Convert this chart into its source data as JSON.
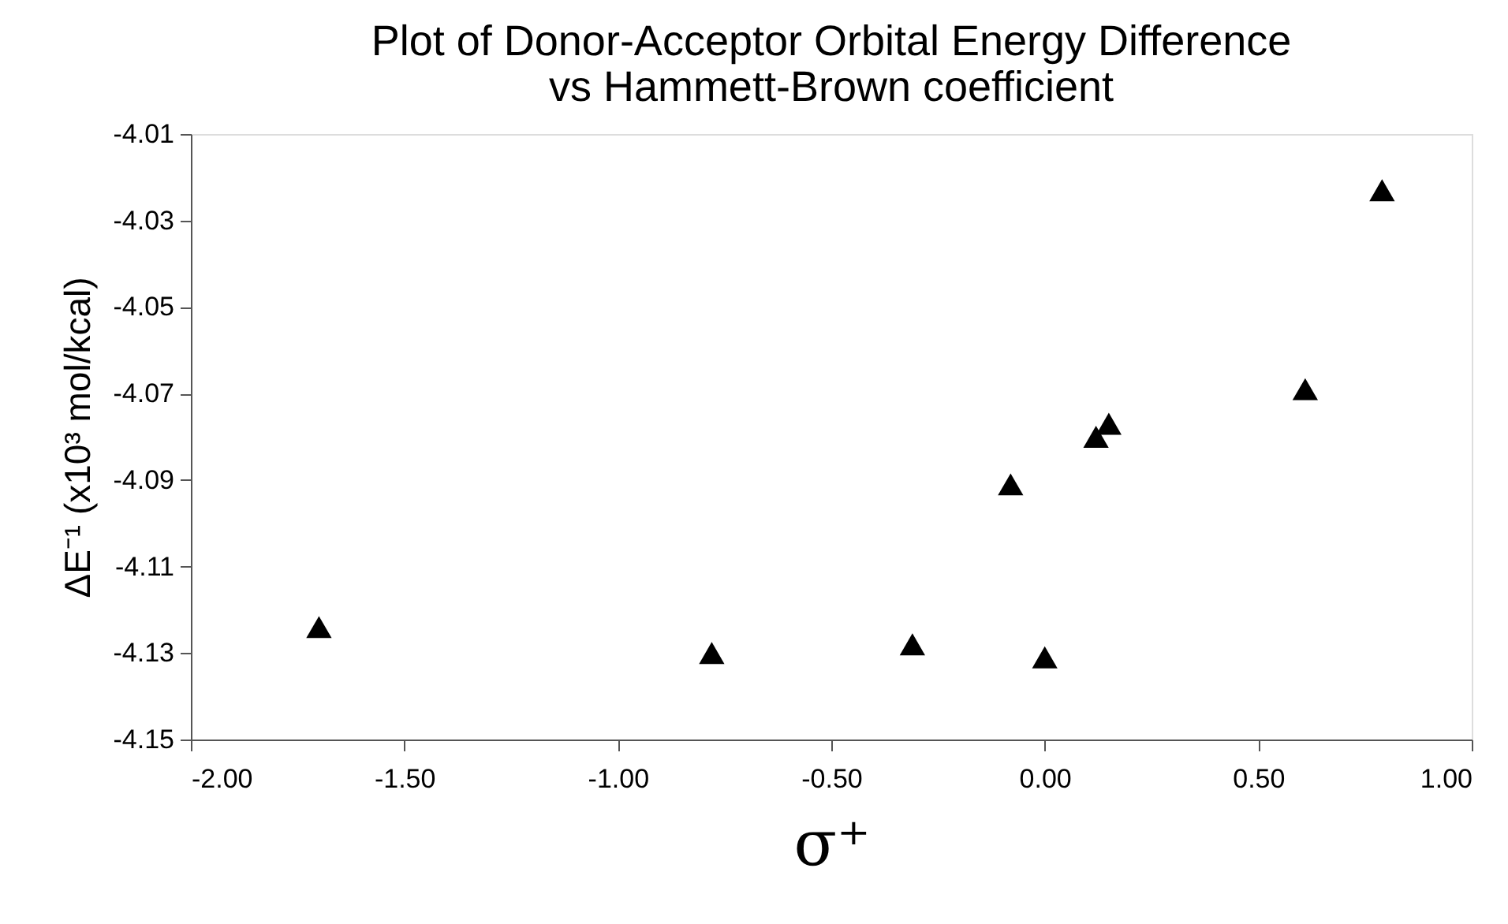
{
  "chart_data": {
    "type": "scatter",
    "title": "Plot of Donor-Acceptor Orbital Energy Difference\nvs Hammett-Brown coefficient",
    "xlabel": "σ⁺",
    "ylabel": "ΔE⁻¹ (x10³ mol/kcal)",
    "x": [
      -1.7,
      -0.78,
      -0.31,
      0.0,
      -0.08,
      0.12,
      0.15,
      0.61,
      0.79
    ],
    "series": [
      {
        "color": "#000000",
        "values": [
          -4.124,
          -4.13,
          -4.128,
          -4.131,
          -4.091,
          -4.08,
          -4.077,
          -4.069,
          -4.023
        ]
      }
    ],
    "xlim": [
      -2.0,
      1.0
    ],
    "xticks": [
      {
        "value": -2.0,
        "label": "-2.00"
      },
      {
        "value": -1.5,
        "label": "-1.50"
      },
      {
        "value": -1.0,
        "label": "-1.00"
      },
      {
        "value": -0.5,
        "label": "-0.50"
      },
      {
        "value": 0.0,
        "label": "0.00"
      },
      {
        "value": 0.5,
        "label": "0.50"
      },
      {
        "value": 1.0,
        "label": "1.00"
      }
    ],
    "ylim": [
      -4.15,
      -4.01
    ],
    "yticks": [
      -4.15,
      -4.13,
      -4.11,
      -4.09,
      -4.07,
      -4.05,
      -4.03,
      -4.01
    ],
    "marker": "triangle",
    "grid": false
  }
}
